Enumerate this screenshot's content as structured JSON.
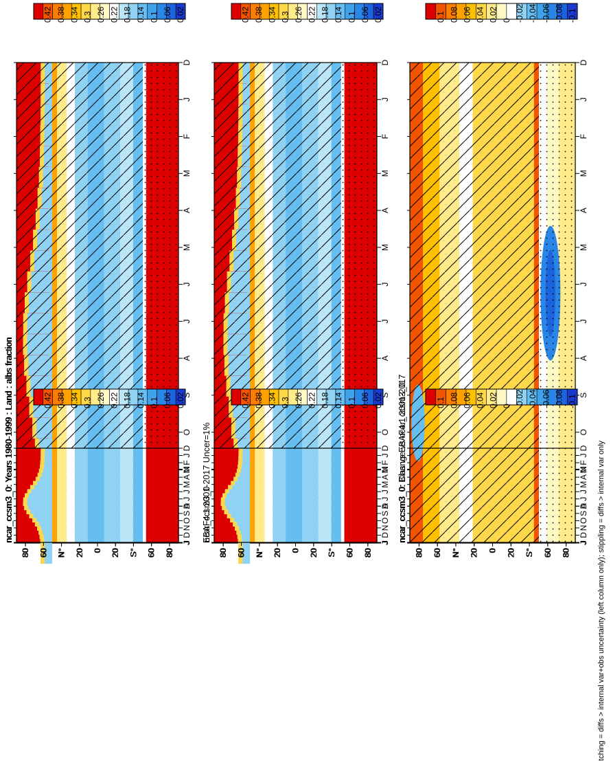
{
  "figure": {
    "footer": "hatching = diffs > internal var+obs uncertainty (left column only); stippling = diffs > internal var only"
  },
  "colors": {
    "abs_palette": [
      "#dc0000",
      "#f25400",
      "#fd7d00",
      "#ffa200",
      "#ffc000",
      "#ffd84a",
      "#ffeb8a",
      "#fff9c6",
      "#ffffff",
      "#bbe6f7",
      "#8fd2f3",
      "#66bdef",
      "#3ea3eb",
      "#2a86e6",
      "#1d64dc",
      "#1a39cf"
    ],
    "diff_palette": [
      "#dc0000",
      "#f25400",
      "#fd7d00",
      "#ffa200",
      "#ffc000",
      "#ffd84a",
      "#ffeb8a",
      "#fff9c6",
      "#ffffff",
      "#8fd2f3",
      "#66bdef",
      "#3ea3eb",
      "#2a86e6",
      "#1d64dc",
      "#1a39cf"
    ]
  },
  "chart_data": [
    {
      "id": "model-abs-left",
      "type": "heatmap",
      "title": "ncar_ccsm3_0: Years 1980-1999 : Land : albs fraction",
      "x_ticks": [
        "D",
        "J",
        "F",
        "M",
        "A",
        "M",
        "J",
        "J",
        "A",
        "S",
        "O",
        "N",
        "D",
        "J"
      ],
      "y_ticks": [
        "80",
        "60",
        "N°",
        "20",
        "0",
        "20",
        "S°",
        "60",
        "80"
      ],
      "colorbar_labels": [
        "0.42",
        "0.38",
        "0.34",
        "0.3",
        "0.26",
        "0.22",
        "0.18",
        "0.14",
        "0.1",
        "0.06",
        "0.02"
      ],
      "hatching": true,
      "stippling": true
    },
    {
      "id": "obs-abs-left",
      "type": "heatmap",
      "title": "EBAF4.1 2001-2017 Uncer=1%",
      "x_ticks": [
        "D",
        "J",
        "F",
        "M",
        "A",
        "M",
        "J",
        "J",
        "A",
        "S",
        "O",
        "N",
        "D",
        "J"
      ],
      "y_ticks": [
        "80",
        "60",
        "N°",
        "20",
        "0",
        "20",
        "S°",
        "60",
        "80"
      ],
      "colorbar_labels": [
        "0.42",
        "0.38",
        "0.34",
        "0.3",
        "0.26",
        "0.22",
        "0.18",
        "0.14",
        "0.1",
        "0.06",
        "0.02"
      ],
      "hatching": true,
      "stippling": true
    },
    {
      "id": "bias-left",
      "type": "heatmap",
      "title": "ncar_ccsm3_0: Bias vs EBAF4.1 2001-2017",
      "x_ticks": [
        "D",
        "J",
        "F",
        "M",
        "A",
        "M",
        "J",
        "J",
        "A",
        "S",
        "O",
        "N",
        "D",
        "J"
      ],
      "y_ticks": [
        "80",
        "60",
        "N°",
        "20",
        "0",
        "20",
        "S°",
        "60",
        "80"
      ],
      "colorbar_labels": [
        "0.1",
        "0.08",
        "0.06",
        "0.04",
        "0.02",
        "0",
        "-0.02",
        "-0.04",
        "-0.06",
        "-0.08",
        "-0.1"
      ],
      "hatching": true,
      "stippling": true
    },
    {
      "id": "model-abs-right",
      "type": "heatmap",
      "title": "ncar_ccsm3_0: Years 1980-1999 : Land : albs fraction",
      "x_ticks": [
        "D",
        "J",
        "F",
        "M",
        "A",
        "M",
        "J",
        "J",
        "A",
        "S",
        "O",
        "N",
        "D",
        "J"
      ],
      "y_ticks": [
        "80",
        "60",
        "N°",
        "20",
        "0",
        "20",
        "S°",
        "60",
        "80"
      ],
      "colorbar_labels": [
        "0.42",
        "0.38",
        "0.34",
        "0.3",
        "0.26",
        "0.22",
        "0.18",
        "0.14",
        "0.1",
        "0.06",
        "0.02"
      ],
      "hatching": false,
      "stippling": false
    },
    {
      "id": "model-abs-right-2",
      "type": "heatmap",
      "title": "ncar_ccsm3_0",
      "x_ticks": [
        "D",
        "J",
        "F",
        "M",
        "A",
        "M",
        "J",
        "J",
        "A",
        "S",
        "O",
        "N",
        "D",
        "J"
      ],
      "y_ticks": [
        "80",
        "60",
        "N°",
        "20",
        "0",
        "20",
        "S°",
        "60",
        "80"
      ],
      "colorbar_labels": [
        "0.42",
        "0.38",
        "0.34",
        "0.3",
        "0.26",
        "0.22",
        "0.18",
        "0.14",
        "0.1",
        "0.06",
        "0.02"
      ],
      "hatching": false,
      "stippling": false
    },
    {
      "id": "change-right",
      "type": "heatmap",
      "title": "ncar_ccsm3_0: Change vs ncar_ccsm3_0",
      "x_ticks": [
        "D",
        "J",
        "F",
        "M",
        "A",
        "M",
        "J",
        "J",
        "A",
        "S",
        "O",
        "N",
        "D",
        "J"
      ],
      "y_ticks": [
        "80",
        "60",
        "N°",
        "20",
        "0",
        "20",
        "S°",
        "60",
        "80"
      ],
      "colorbar_labels": [
        "0.1",
        "0.08",
        "0.06",
        "0.04",
        "0.02",
        "0",
        "-0.02",
        "-0.04",
        "-0.06",
        "-0.08",
        "-0.1"
      ],
      "hatching": false,
      "stippling": false,
      "empty": true
    }
  ]
}
